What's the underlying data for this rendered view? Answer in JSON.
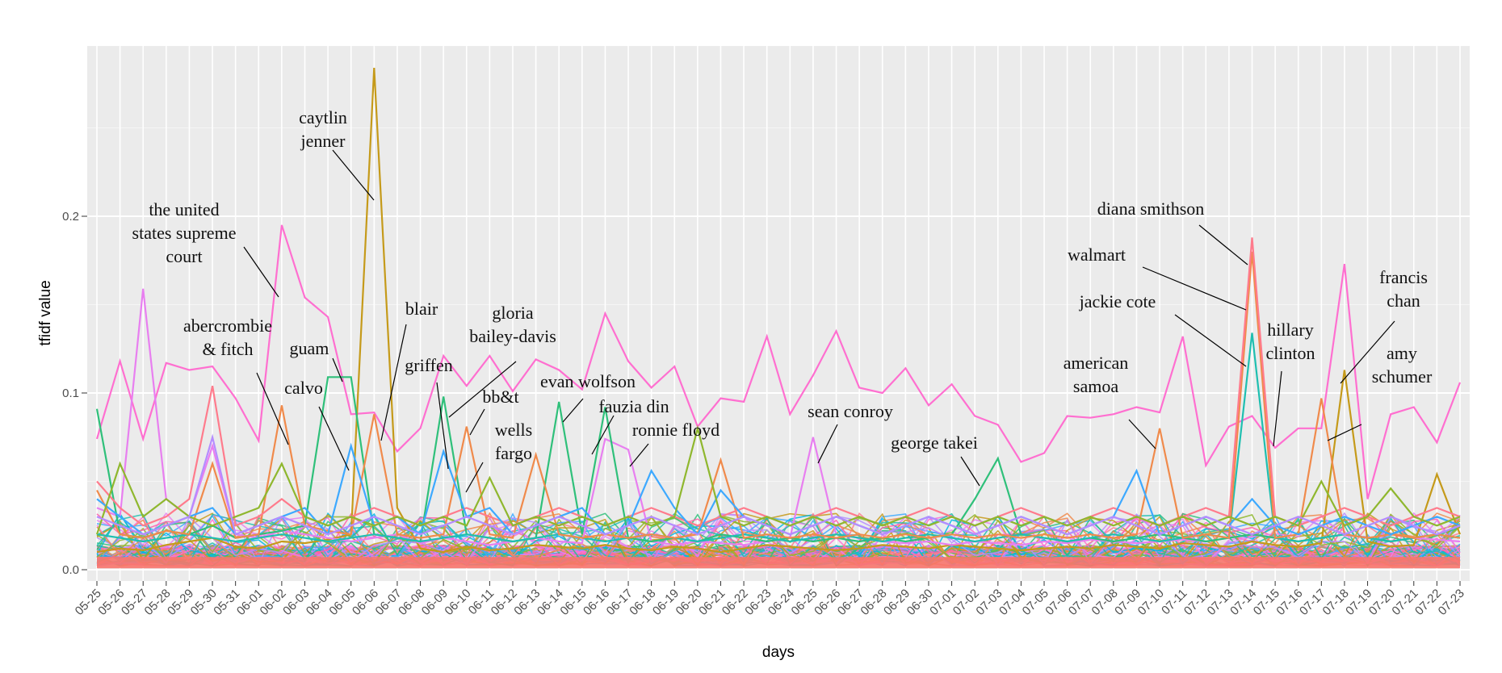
{
  "chart_data": {
    "type": "line",
    "title": "",
    "xlabel": "days",
    "ylabel": "tfidf value",
    "ylim": [
      0,
      0.3
    ],
    "y_ticks": [
      0.0,
      0.1,
      0.2
    ],
    "y_tick_labels": [
      "0.0",
      "0.1",
      "0.2"
    ],
    "grid": true,
    "legend": "none",
    "x": [
      "05-25",
      "05-26",
      "05-27",
      "05-28",
      "05-29",
      "05-30",
      "05-31",
      "06-01",
      "06-02",
      "06-03",
      "06-04",
      "06-05",
      "06-06",
      "06-07",
      "06-08",
      "06-09",
      "06-10",
      "06-11",
      "06-12",
      "06-13",
      "06-14",
      "06-15",
      "06-16",
      "06-17",
      "06-18",
      "06-19",
      "06-20",
      "06-21",
      "06-22",
      "06-23",
      "06-24",
      "06-25",
      "06-26",
      "06-27",
      "06-28",
      "06-29",
      "06-30",
      "07-01",
      "07-02",
      "07-03",
      "07-04",
      "07-05",
      "07-06",
      "07-07",
      "07-08",
      "07-09",
      "07-10",
      "07-11",
      "07-12",
      "07-13",
      "07-14",
      "07-15",
      "07-16",
      "07-17",
      "07-18",
      "07-19",
      "07-20",
      "07-21",
      "07-22",
      "07-23"
    ],
    "series": [
      {
        "color": "#ff6fd0",
        "values": [
          0.074,
          0.118,
          0.074,
          0.117,
          0.113,
          0.115,
          0.097,
          0.073,
          0.195,
          0.154,
          0.143,
          0.088,
          0.089,
          0.067,
          0.08,
          0.121,
          0.104,
          0.121,
          0.101,
          0.119,
          0.113,
          0.102,
          0.145,
          0.118,
          0.103,
          0.115,
          0.081,
          0.097,
          0.095,
          0.132,
          0.088,
          0.11,
          0.135,
          0.103,
          0.1,
          0.114,
          0.093,
          0.105,
          0.087,
          0.082,
          0.061,
          0.066,
          0.087,
          0.086,
          0.088,
          0.092,
          0.089,
          0.132,
          0.059,
          0.081,
          0.087,
          0.069,
          0.08,
          0.08,
          0.173,
          0.04,
          0.088,
          0.092,
          0.072,
          0.106
        ]
      },
      {
        "color": "#c59a1a",
        "values": [
          0.01,
          0.012,
          0.011,
          0.014,
          0.016,
          0.018,
          0.013,
          0.012,
          0.016,
          0.015,
          0.017,
          0.02,
          0.284,
          0.035,
          0.012,
          0.01,
          0.013,
          0.011,
          0.012,
          0.014,
          0.013,
          0.012,
          0.014,
          0.012,
          0.011,
          0.013,
          0.012,
          0.01,
          0.012,
          0.014,
          0.013,
          0.012,
          0.011,
          0.012,
          0.014,
          0.013,
          0.012,
          0.014,
          0.013,
          0.012,
          0.011,
          0.012,
          0.013,
          0.012,
          0.014,
          0.013,
          0.012,
          0.015,
          0.014,
          0.013,
          0.016,
          0.014,
          0.013,
          0.015,
          0.113,
          0.016,
          0.013,
          0.014,
          0.054,
          0.02
        ]
      },
      {
        "color": "#e87ff0",
        "values": [
          0.035,
          0.03,
          0.159,
          0.04,
          0.03,
          0.07,
          0.02,
          0.018,
          0.022,
          0.02,
          0.018,
          0.016,
          0.018,
          0.02,
          0.015,
          0.018,
          0.016,
          0.014,
          0.016,
          0.018,
          0.016,
          0.015,
          0.074,
          0.068,
          0.016,
          0.014,
          0.016,
          0.015,
          0.014,
          0.016,
          0.018,
          0.075,
          0.02,
          0.018,
          0.016,
          0.015,
          0.016,
          0.014,
          0.016,
          0.015,
          0.014,
          0.016,
          0.015,
          0.017,
          0.016,
          0.015,
          0.016,
          0.017,
          0.016,
          0.018,
          0.02,
          0.018,
          0.016,
          0.018,
          0.02,
          0.018,
          0.016,
          0.018,
          0.017,
          0.016
        ]
      },
      {
        "color": "#2fc07a",
        "values": [
          0.091,
          0.02,
          0.018,
          0.022,
          0.02,
          0.025,
          0.018,
          0.02,
          0.022,
          0.025,
          0.109,
          0.109,
          0.02,
          0.018,
          0.016,
          0.098,
          0.02,
          0.018,
          0.016,
          0.018,
          0.095,
          0.02,
          0.092,
          0.018,
          0.016,
          0.018,
          0.016,
          0.02,
          0.018,
          0.016,
          0.018,
          0.016,
          0.018,
          0.016,
          0.018,
          0.016,
          0.018,
          0.02,
          0.04,
          0.063,
          0.02,
          0.018,
          0.016,
          0.018,
          0.016,
          0.018,
          0.02,
          0.018,
          0.016,
          0.018,
          0.02,
          0.018,
          0.016,
          0.018,
          0.02,
          0.018,
          0.016,
          0.018,
          0.02,
          0.018
        ]
      },
      {
        "color": "#1fbfb0",
        "values": [
          0.02,
          0.018,
          0.016,
          0.018,
          0.02,
          0.018,
          0.016,
          0.018,
          0.02,
          0.018,
          0.016,
          0.018,
          0.02,
          0.018,
          0.016,
          0.018,
          0.02,
          0.018,
          0.016,
          0.018,
          0.02,
          0.018,
          0.016,
          0.018,
          0.02,
          0.018,
          0.016,
          0.018,
          0.02,
          0.018,
          0.016,
          0.018,
          0.02,
          0.018,
          0.016,
          0.018,
          0.02,
          0.018,
          0.016,
          0.018,
          0.02,
          0.018,
          0.016,
          0.018,
          0.02,
          0.018,
          0.016,
          0.018,
          0.02,
          0.018,
          0.134,
          0.018,
          0.016,
          0.018,
          0.02,
          0.018,
          0.016,
          0.018,
          0.02,
          0.018
        ]
      },
      {
        "color": "#f08a4b",
        "values": [
          0.045,
          0.02,
          0.018,
          0.022,
          0.02,
          0.06,
          0.018,
          0.02,
          0.093,
          0.025,
          0.022,
          0.02,
          0.088,
          0.02,
          0.018,
          0.02,
          0.081,
          0.02,
          0.018,
          0.065,
          0.02,
          0.018,
          0.02,
          0.018,
          0.02,
          0.018,
          0.02,
          0.062,
          0.018,
          0.02,
          0.018,
          0.02,
          0.018,
          0.02,
          0.018,
          0.02,
          0.018,
          0.02,
          0.018,
          0.02,
          0.018,
          0.02,
          0.018,
          0.02,
          0.018,
          0.02,
          0.08,
          0.018,
          0.02,
          0.018,
          0.18,
          0.018,
          0.02,
          0.097,
          0.02,
          0.018,
          0.02,
          0.018,
          0.02,
          0.018
        ]
      },
      {
        "color": "#ff7b8c",
        "values": [
          0.05,
          0.035,
          0.025,
          0.03,
          0.04,
          0.104,
          0.025,
          0.03,
          0.04,
          0.03,
          0.025,
          0.03,
          0.035,
          0.03,
          0.025,
          0.03,
          0.035,
          0.03,
          0.025,
          0.03,
          0.035,
          0.03,
          0.025,
          0.03,
          0.035,
          0.03,
          0.025,
          0.03,
          0.035,
          0.03,
          0.025,
          0.03,
          0.035,
          0.03,
          0.025,
          0.03,
          0.035,
          0.03,
          0.025,
          0.03,
          0.035,
          0.03,
          0.025,
          0.03,
          0.035,
          0.03,
          0.025,
          0.03,
          0.035,
          0.03,
          0.188,
          0.03,
          0.025,
          0.03,
          0.035,
          0.03,
          0.025,
          0.03,
          0.035,
          0.03
        ]
      },
      {
        "color": "#3da9ff",
        "values": [
          0.04,
          0.03,
          0.02,
          0.025,
          0.03,
          0.035,
          0.02,
          0.025,
          0.03,
          0.035,
          0.02,
          0.07,
          0.025,
          0.03,
          0.02,
          0.067,
          0.03,
          0.035,
          0.02,
          0.025,
          0.03,
          0.035,
          0.02,
          0.025,
          0.056,
          0.035,
          0.02,
          0.045,
          0.03,
          0.025,
          0.02,
          0.025,
          0.03,
          0.025,
          0.02,
          0.025,
          0.03,
          0.025,
          0.02,
          0.025,
          0.03,
          0.025,
          0.02,
          0.025,
          0.03,
          0.056,
          0.02,
          0.025,
          0.03,
          0.025,
          0.04,
          0.025,
          0.02,
          0.025,
          0.03,
          0.025,
          0.02,
          0.025,
          0.03,
          0.025
        ]
      },
      {
        "color": "#8fb72e",
        "values": [
          0.02,
          0.06,
          0.03,
          0.04,
          0.03,
          0.025,
          0.03,
          0.035,
          0.06,
          0.03,
          0.025,
          0.03,
          0.025,
          0.03,
          0.025,
          0.03,
          0.025,
          0.052,
          0.025,
          0.03,
          0.025,
          0.03,
          0.025,
          0.03,
          0.025,
          0.03,
          0.08,
          0.03,
          0.025,
          0.03,
          0.025,
          0.03,
          0.025,
          0.03,
          0.025,
          0.03,
          0.025,
          0.03,
          0.025,
          0.03,
          0.025,
          0.03,
          0.025,
          0.03,
          0.025,
          0.03,
          0.025,
          0.03,
          0.025,
          0.03,
          0.025,
          0.03,
          0.025,
          0.05,
          0.025,
          0.03,
          0.046,
          0.03,
          0.025,
          0.03
        ]
      },
      {
        "color": "#b58cff",
        "values": [
          0.03,
          0.025,
          0.02,
          0.025,
          0.03,
          0.075,
          0.02,
          0.025,
          0.03,
          0.025,
          0.02,
          0.025,
          0.03,
          0.025,
          0.02,
          0.025,
          0.03,
          0.025,
          0.02,
          0.025,
          0.03,
          0.025,
          0.02,
          0.025,
          0.03,
          0.025,
          0.02,
          0.025,
          0.03,
          0.025,
          0.02,
          0.025,
          0.03,
          0.025,
          0.02,
          0.025,
          0.03,
          0.025,
          0.02,
          0.025,
          0.03,
          0.025,
          0.02,
          0.025,
          0.03,
          0.025,
          0.02,
          0.025,
          0.03,
          0.025,
          0.02,
          0.025,
          0.03,
          0.025,
          0.02,
          0.025,
          0.03,
          0.025,
          0.02,
          0.025
        ]
      }
    ],
    "annotations": [
      {
        "lines": [
          "caytlin",
          "jenner"
        ]
      },
      {
        "lines": [
          "the united",
          "states supreme",
          "court"
        ]
      },
      {
        "lines": [
          "abercrombie",
          "& fitch"
        ]
      },
      {
        "lines": [
          "guam"
        ]
      },
      {
        "lines": [
          "calvo"
        ]
      },
      {
        "lines": [
          "blair"
        ]
      },
      {
        "lines": [
          "gloria",
          "bailey-davis"
        ]
      },
      {
        "lines": [
          "griffen"
        ]
      },
      {
        "lines": [
          "bb&t"
        ]
      },
      {
        "lines": [
          "wells",
          "fargo"
        ]
      },
      {
        "lines": [
          "evan wolfson"
        ]
      },
      {
        "lines": [
          "fauzia din"
        ]
      },
      {
        "lines": [
          "ronnie floyd"
        ]
      },
      {
        "lines": [
          "sean conroy"
        ]
      },
      {
        "lines": [
          "george takei"
        ]
      },
      {
        "lines": [
          "american",
          "samoa"
        ]
      },
      {
        "lines": [
          "diana smithson"
        ]
      },
      {
        "lines": [
          "walmart"
        ]
      },
      {
        "lines": [
          "jackie cote"
        ]
      },
      {
        "lines": [
          "hillary",
          "clinton"
        ]
      },
      {
        "lines": [
          "francis",
          "chan"
        ]
      },
      {
        "lines": [
          "amy",
          "schumer"
        ]
      }
    ]
  }
}
